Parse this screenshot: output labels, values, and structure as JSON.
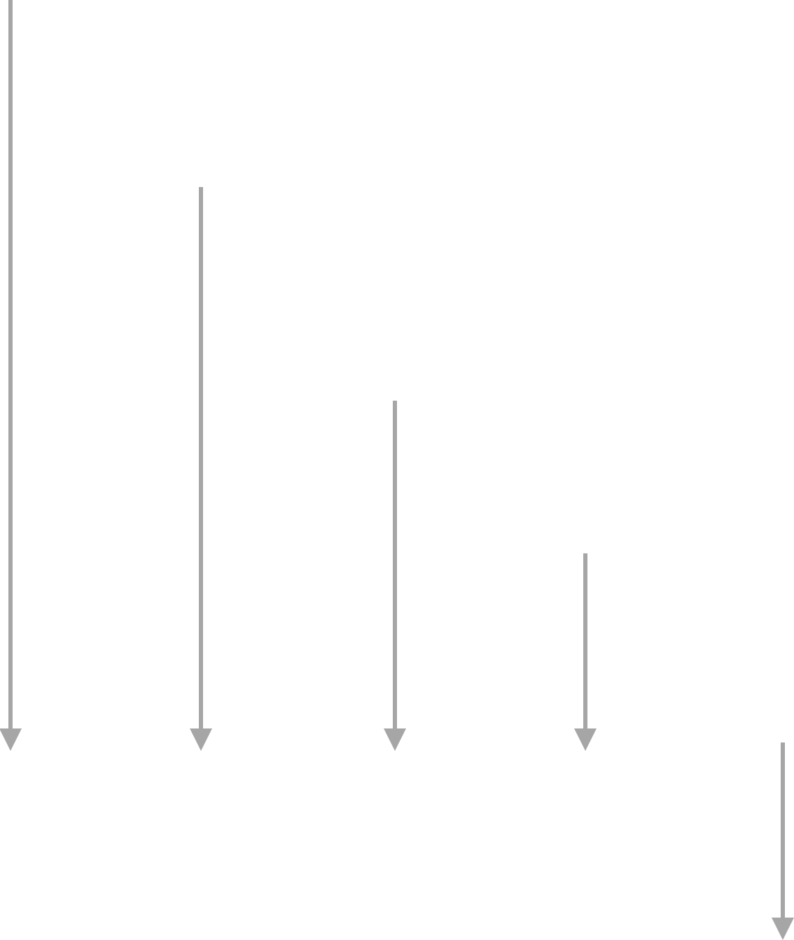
{
  "diagram": {
    "arrow_color": "#a6a6a6",
    "background": "#ffffff",
    "arrows": [
      {
        "direction": "down",
        "icon": "arrow-down-icon"
      },
      {
        "direction": "down",
        "icon": "arrow-down-icon"
      },
      {
        "direction": "down",
        "icon": "arrow-down-icon"
      },
      {
        "direction": "down",
        "icon": "arrow-down-icon"
      },
      {
        "direction": "down",
        "icon": "arrow-down-icon"
      }
    ]
  }
}
